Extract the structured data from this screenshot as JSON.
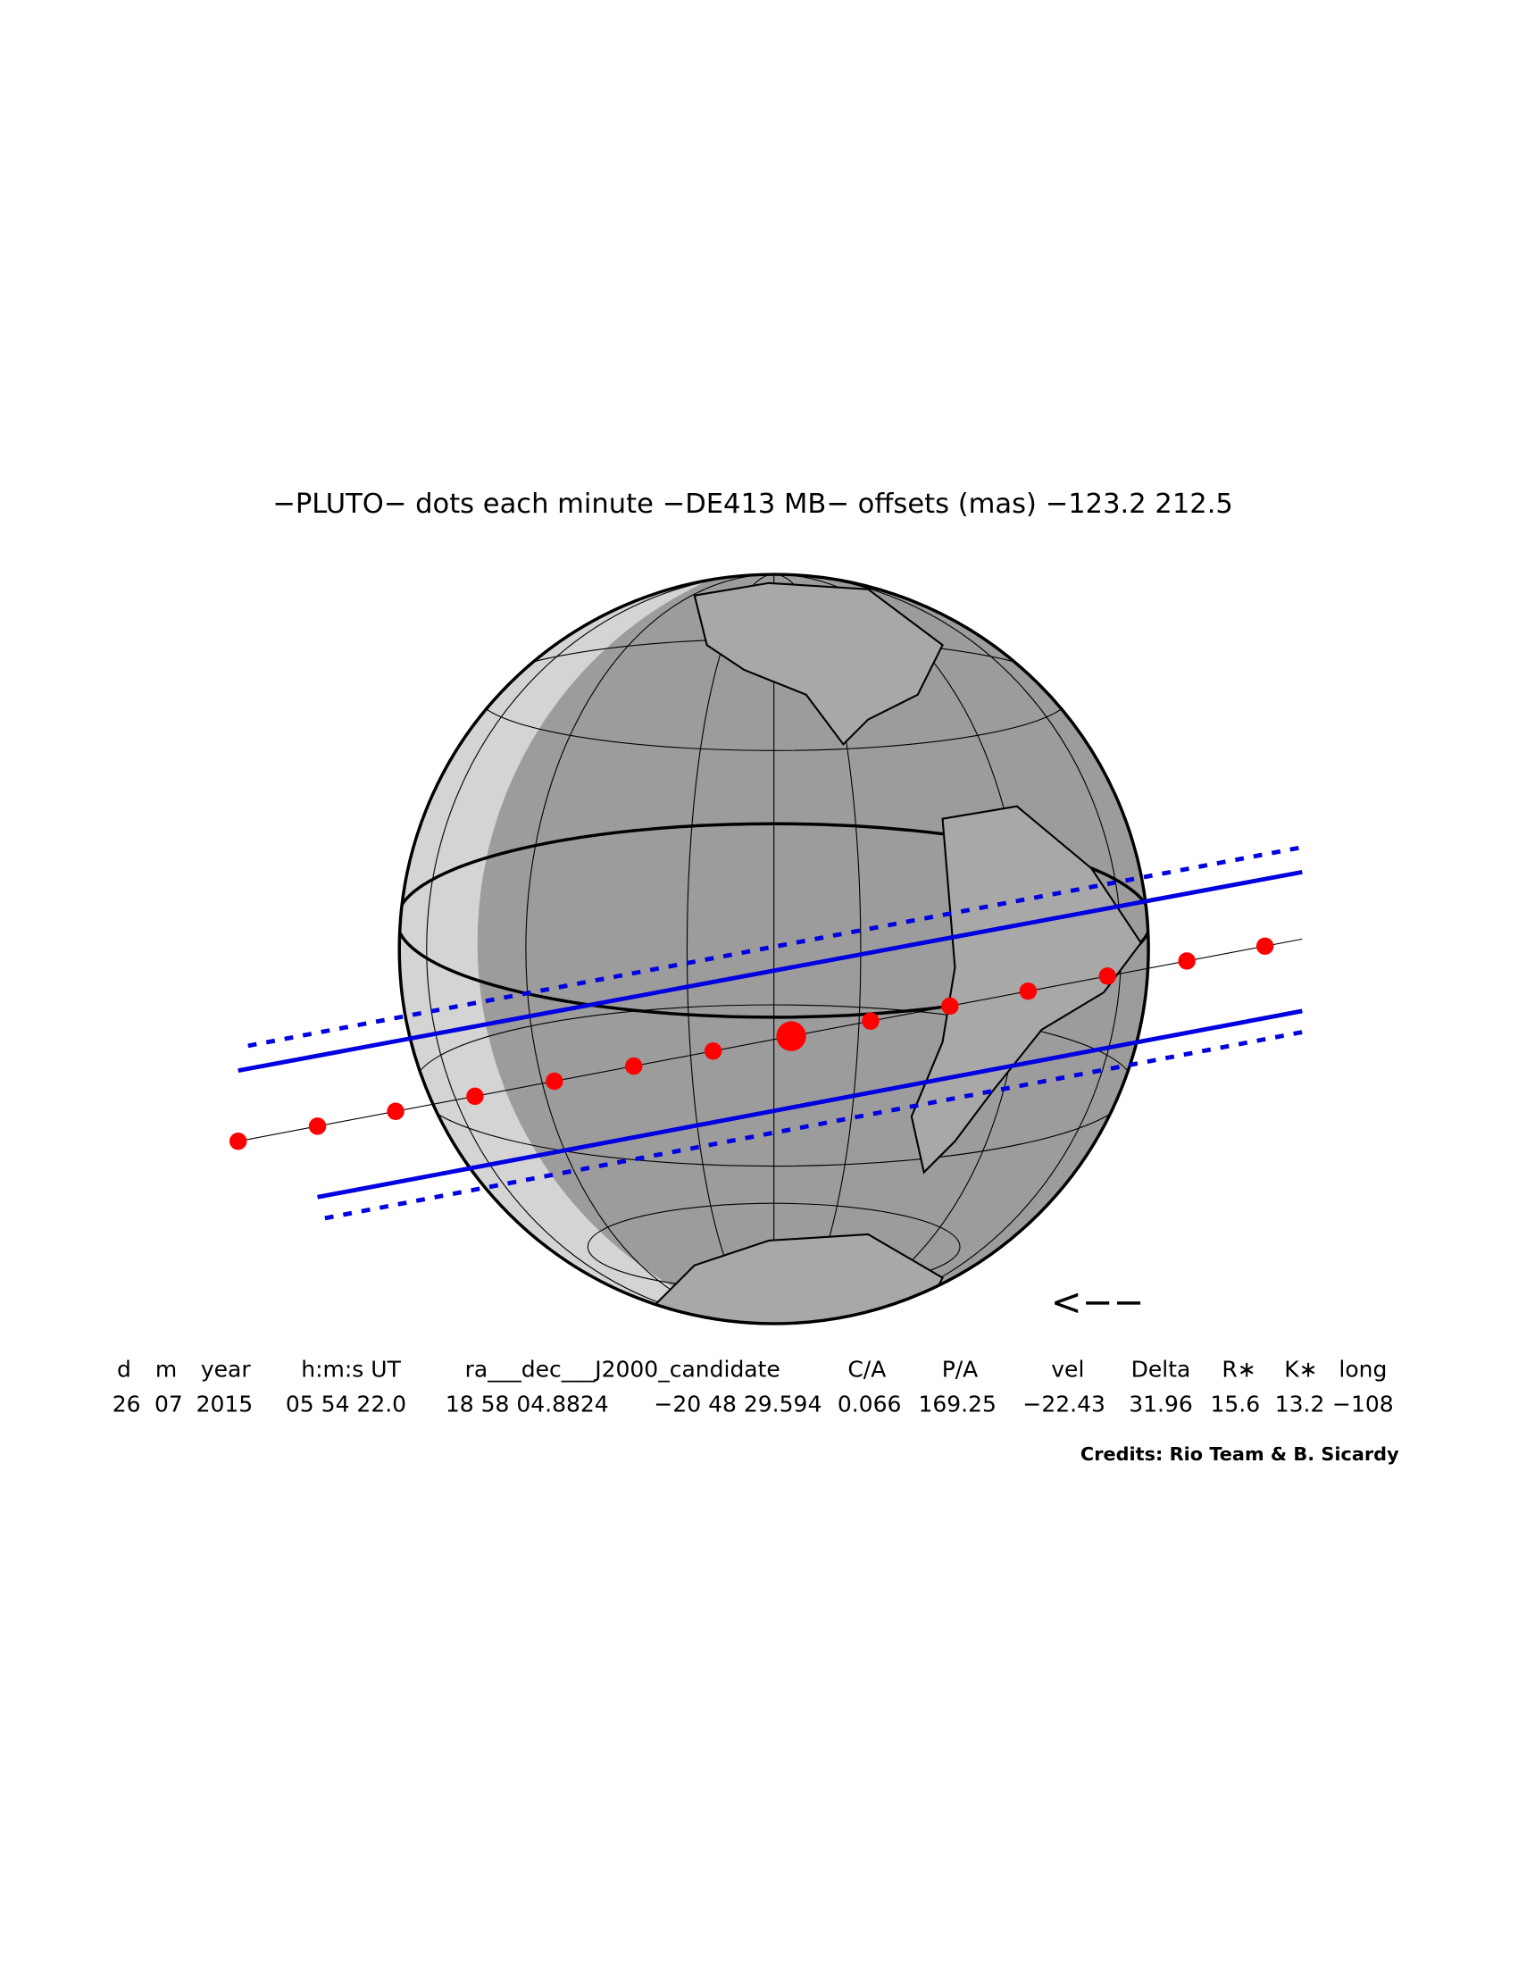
{
  "title": "−PLUTO−  dots each minute  −DE413 MB−  offsets (mas)  −123.2   212.5",
  "direction_marker": "<−−",
  "table": {
    "headers": [
      "d",
      "m",
      "year",
      "h:m:s UT",
      "ra___dec___J2000_candidate",
      "C/A",
      "P/A",
      "vel",
      "Delta",
      "R∗",
      "K∗",
      "long"
    ],
    "values": [
      "26",
      "07",
      "2015",
      "05 54 22.0",
      "18 58 04.8824",
      "−20 48 29.594",
      "0.066",
      "169.25",
      "−22.43",
      "31.96",
      "15.6",
      "13.2",
      "−108"
    ]
  },
  "credits": "Credits: Rio Team & B. Sicardy"
}
